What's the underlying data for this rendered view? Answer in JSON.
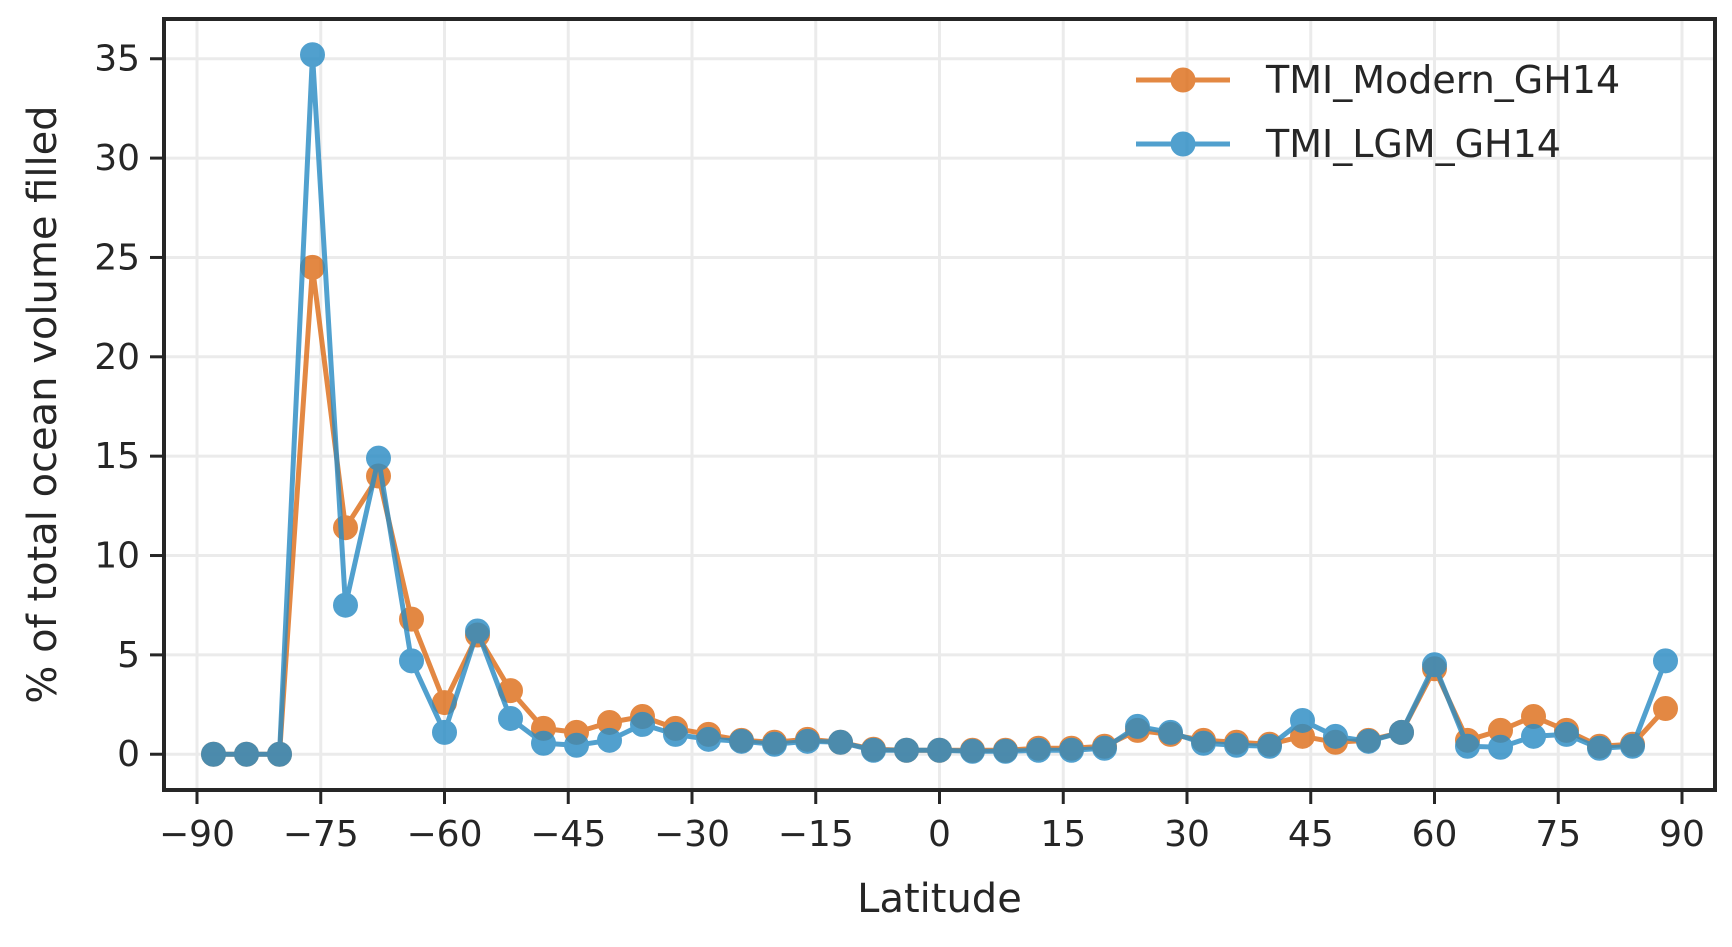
{
  "chart_data": {
    "type": "line",
    "title": "",
    "xlabel": "Latitude",
    "ylabel": "% of total ocean volume filled",
    "xlim": [
      -94,
      94
    ],
    "ylim": [
      -1.8,
      37
    ],
    "xticks": [
      -90,
      -75,
      -60,
      -45,
      -30,
      -15,
      0,
      15,
      30,
      45,
      60,
      75,
      90
    ],
    "xtick_labels": [
      "−90",
      "−75",
      "−60",
      "−45",
      "−30",
      "−15",
      "0",
      "15",
      "30",
      "45",
      "60",
      "75",
      "90"
    ],
    "yticks": [
      0,
      5,
      10,
      15,
      20,
      25,
      30,
      35
    ],
    "ytick_labels": [
      "0",
      "5",
      "10",
      "15",
      "20",
      "25",
      "30",
      "35"
    ],
    "grid": true,
    "legend_position": "top-right",
    "x": [
      -88,
      -84,
      -80,
      -76,
      -72,
      -68,
      -64,
      -60,
      -56,
      -52,
      -48,
      -44,
      -40,
      -36,
      -32,
      -28,
      -24,
      -20,
      -16,
      -12,
      -8,
      -4,
      0,
      4,
      8,
      12,
      16,
      20,
      24,
      28,
      32,
      36,
      40,
      44,
      48,
      52,
      56,
      60,
      64,
      68,
      72,
      76,
      80,
      84,
      88
    ],
    "series": [
      {
        "name": "TMI_Modern_GH14",
        "color": "#dd6e1a",
        "values": [
          0,
          0,
          0,
          24.5,
          11.4,
          14.0,
          6.8,
          2.6,
          6.0,
          3.2,
          1.3,
          1.1,
          1.6,
          1.9,
          1.3,
          1.0,
          0.7,
          0.6,
          0.75,
          0.6,
          0.25,
          0.2,
          0.2,
          0.2,
          0.2,
          0.3,
          0.3,
          0.4,
          1.2,
          1.0,
          0.7,
          0.6,
          0.5,
          0.9,
          0.6,
          0.7,
          1.1,
          4.3,
          0.7,
          1.2,
          1.9,
          1.2,
          0.4,
          0.5,
          2.3
        ]
      },
      {
        "name": "TMI_LGM_GH14",
        "color": "#2b8cc4",
        "values": [
          0,
          0,
          0,
          35.2,
          7.5,
          14.9,
          4.7,
          1.1,
          6.2,
          1.8,
          0.55,
          0.45,
          0.7,
          1.5,
          1.0,
          0.75,
          0.65,
          0.5,
          0.65,
          0.6,
          0.2,
          0.2,
          0.2,
          0.15,
          0.15,
          0.2,
          0.2,
          0.3,
          1.4,
          1.1,
          0.55,
          0.45,
          0.4,
          1.7,
          0.9,
          0.65,
          1.1,
          4.5,
          0.4,
          0.35,
          0.9,
          1.0,
          0.3,
          0.4,
          4.7
        ]
      }
    ]
  }
}
